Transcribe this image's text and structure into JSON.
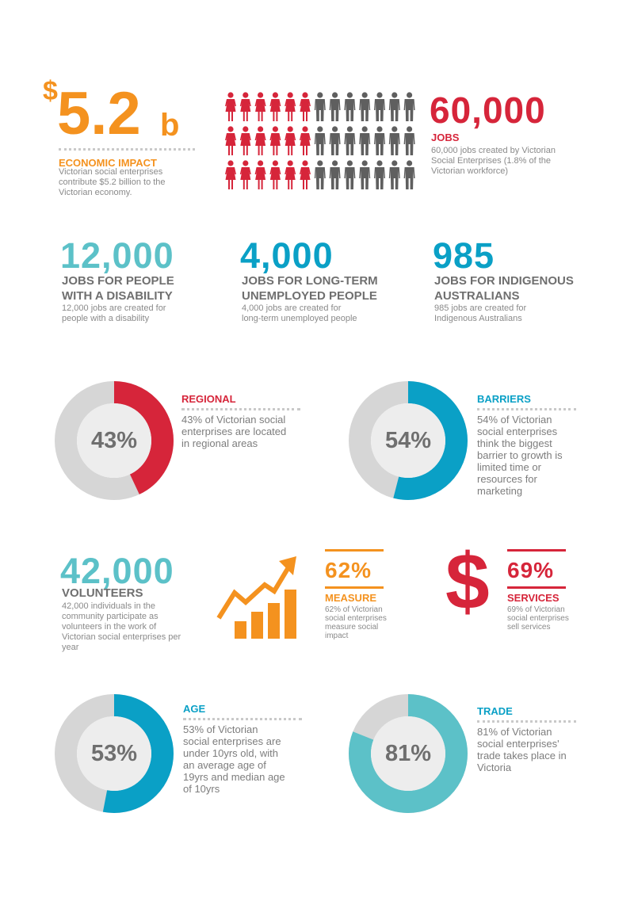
{
  "colors": {
    "orange": "#F4921F",
    "red": "#D6253A",
    "teal": "#5CC1C8",
    "blue": "#0AA0C6",
    "grey": "#5F5F5F",
    "light_grey": "#D6D6D6"
  },
  "economic": {
    "dollar": "$",
    "amount": "5.2",
    "suffix": "b",
    "title": "ECONOMIC IMPACT",
    "desc": "Victorian social enterprises contribute $5.2 billion to the Victorian economy."
  },
  "jobs": {
    "number": "60,000",
    "title": "JOBS",
    "desc": "60,000 jobs created by Victorian Social Enterprises (1.8% of the Victorian workforce)",
    "pictogram": {
      "rows": 3,
      "per_row": 13,
      "female_per_row": 6,
      "female_icon": "woman-icon",
      "male_icon": "man-icon"
    }
  },
  "disability": {
    "number": "12,000",
    "title_line1": "JOBS FOR PEOPLE",
    "title_line2": "WITH A DISABILITY",
    "desc_line1": "12,000 jobs are created for",
    "desc_line2": "people with a disability"
  },
  "unemployed": {
    "number": "4,000",
    "title_line1": "JOBS FOR LONG-TERM",
    "title_line2": "UNEMPLOYED PEOPLE",
    "desc_line1": "4,000 jobs are created for",
    "desc_line2": "long-term unemployed people"
  },
  "indigenous": {
    "number": "985",
    "title_line1": "JOBS FOR INDIGENOUS",
    "title_line2": "AUSTRALIANS",
    "desc_line1": "985 jobs are created for",
    "desc_line2": "Indigenous Australians"
  },
  "regional": {
    "percent": 43,
    "label": "43%",
    "title": "REGIONAL",
    "desc": "43% of Victorian social enterprises are located in regional areas"
  },
  "barriers": {
    "percent": 54,
    "label": "54%",
    "title": "BARRIERS",
    "desc": "54% of Victorian social enterprises think the biggest barrier to growth is limited time or resources for marketing"
  },
  "volunteers": {
    "number": "42,000",
    "title": "VOLUNTEERS",
    "desc": "42,000 individuals in the community participate as volunteers in the work of Victorian social enterprises per year"
  },
  "measure": {
    "label": "62%",
    "title": "MEASURE",
    "desc": "62% of Victorian social enterprises measure social impact",
    "icon": "growth-chart-icon"
  },
  "services": {
    "dollar": "$",
    "label": "69%",
    "title": "SERVICES",
    "desc": "69% of Victorian social enterprises sell services"
  },
  "age": {
    "percent": 53,
    "label": "53%",
    "title": "AGE",
    "desc": "53% of Victorian social enterprises are under 10yrs old, with an average age of 19yrs and median age of 10yrs"
  },
  "trade": {
    "percent": 81,
    "label": "81%",
    "title": "TRADE",
    "desc": "81% of Victorian social enterprises' trade takes place in Victoria"
  }
}
